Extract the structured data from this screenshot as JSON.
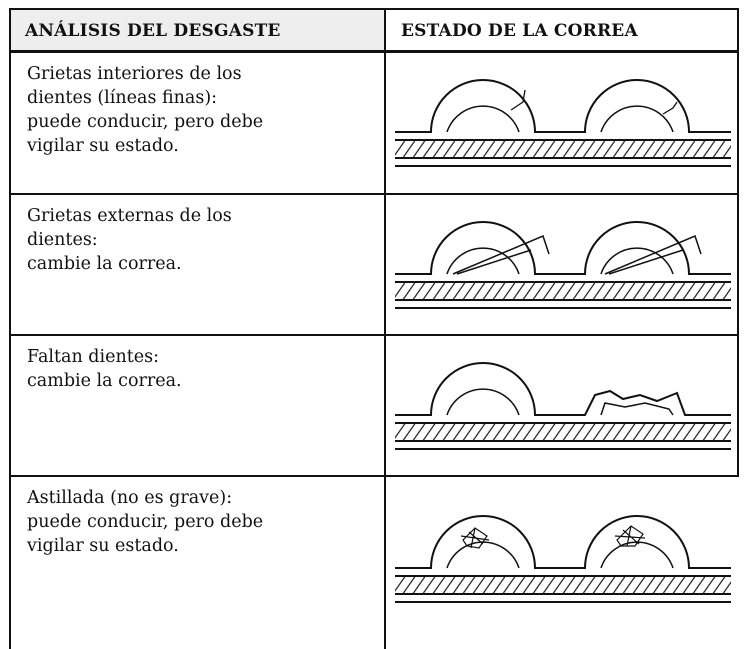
{
  "table": {
    "header": [
      "ANÁLISIS DEL DESGASTE",
      "ESTADO DE LA CORREA"
    ],
    "rows": [
      [
        "Grietas interiores de los",
        "dientes (líneas finas):",
        "puede conducir, pero debe",
        "vigilar su estado."
      ],
      [
        "Grietas externas de los",
        "dientes:",
        "cambie la correa."
      ],
      [
        "Faltan dientes:",
        "cambie la correa."
      ],
      [
        "Astillada (no es grave):",
        "puede conducir, pero debe",
        "vigilar su estado."
      ]
    ]
  }
}
